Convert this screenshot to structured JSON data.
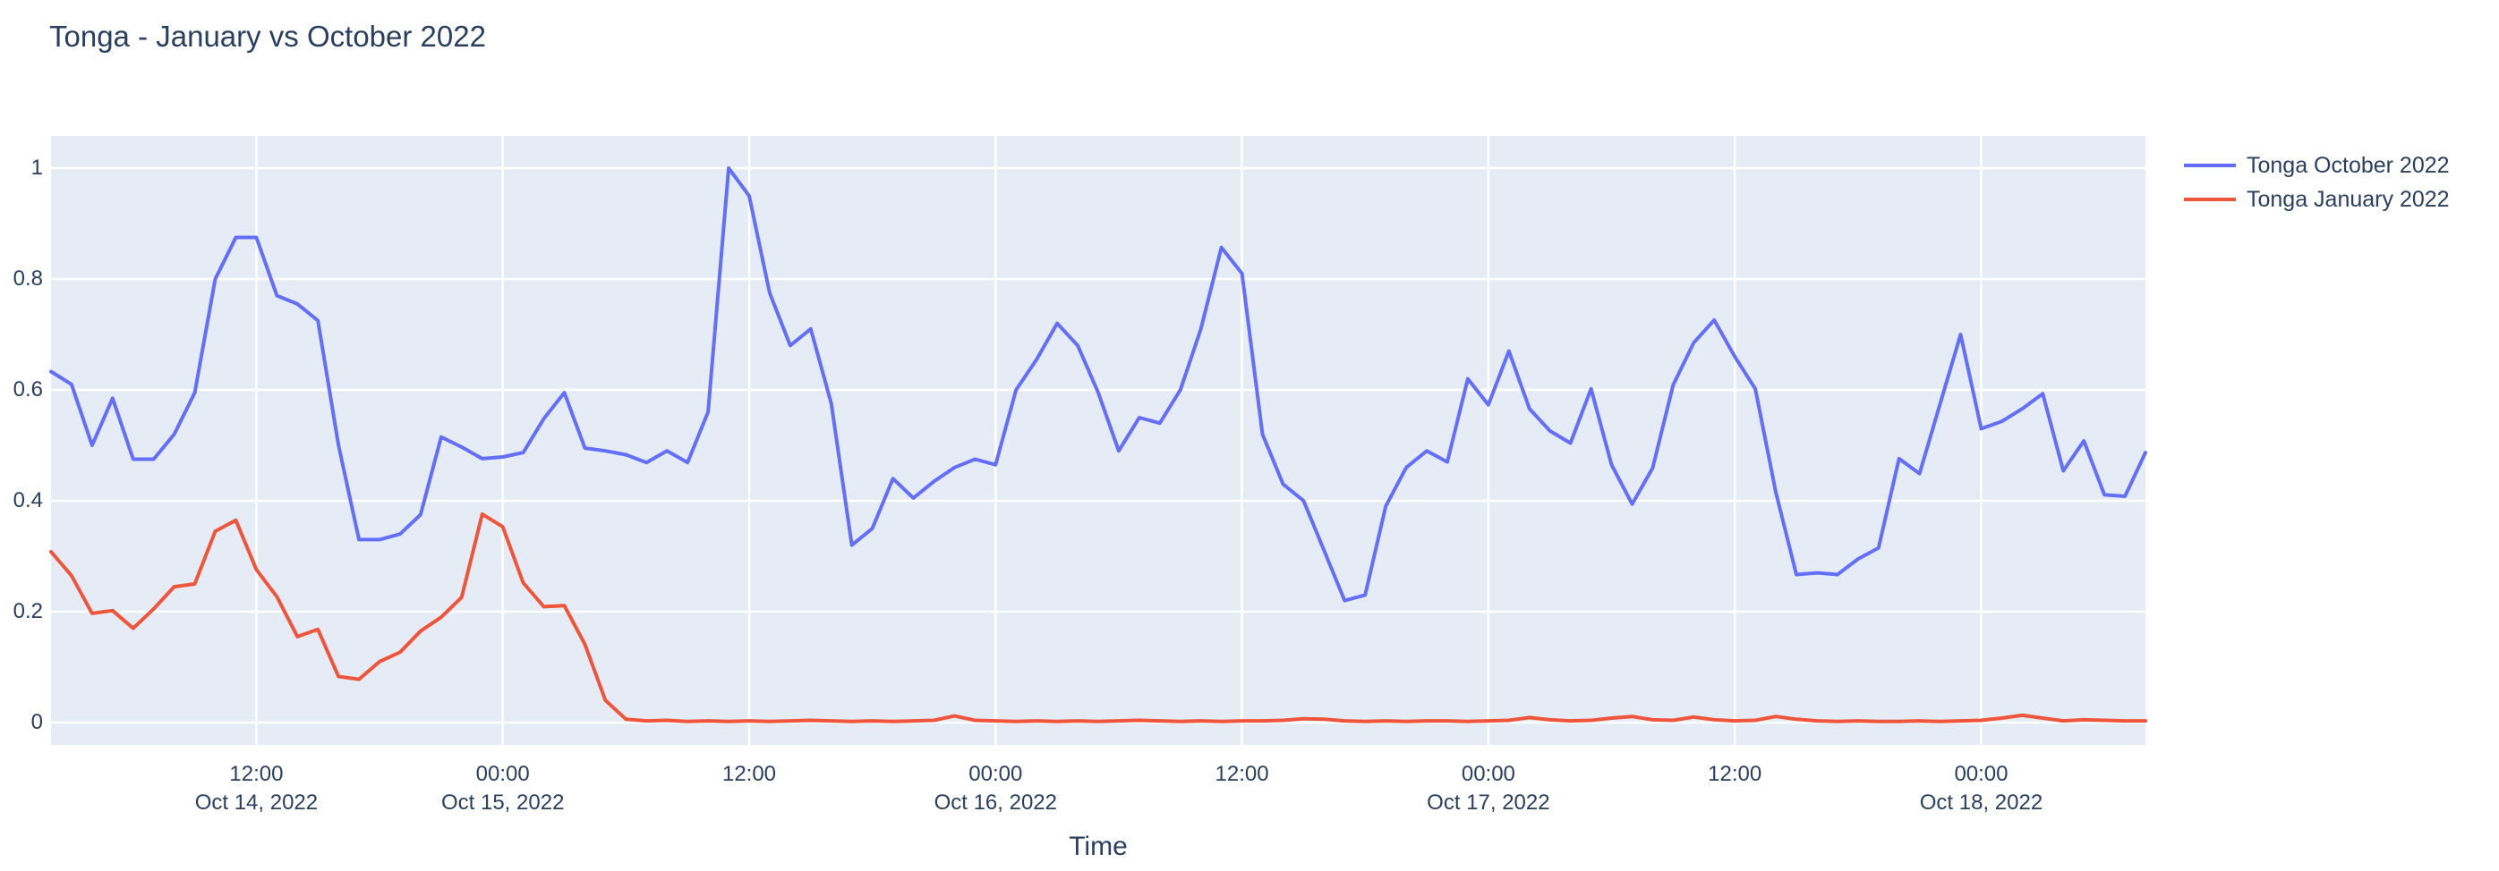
{
  "title": "Tonga - January vs October 2022",
  "chart_data": {
    "type": "line",
    "title": "Tonga - January vs October 2022",
    "xlabel": "Time",
    "ylabel": "",
    "x_start": "2022-10-14 02:00",
    "x_end": "2022-10-18 08:00",
    "interval_hours": 1,
    "ylim": [
      -0.04,
      1.055
    ],
    "grid": true,
    "legend_position": "right-top",
    "plot_background": "#E5ECF6",
    "grid_color": "#FFFFFF",
    "text_color": "#2a3f5f",
    "y_ticks": [
      {
        "value": 0,
        "label": "0"
      },
      {
        "value": 0.2,
        "label": "0.2"
      },
      {
        "value": 0.4,
        "label": "0.4"
      },
      {
        "value": 0.6,
        "label": "0.6"
      },
      {
        "value": 0.8,
        "label": "0.8"
      },
      {
        "value": 1,
        "label": "1"
      }
    ],
    "x_ticks": [
      {
        "hour_offset": 10,
        "time": "12:00",
        "date": "Oct 14, 2022"
      },
      {
        "hour_offset": 22,
        "time": "00:00",
        "date": "Oct 15, 2022"
      },
      {
        "hour_offset": 34,
        "time": "12:00",
        "date": ""
      },
      {
        "hour_offset": 46,
        "time": "00:00",
        "date": "Oct 16, 2022"
      },
      {
        "hour_offset": 58,
        "time": "12:00",
        "date": ""
      },
      {
        "hour_offset": 70,
        "time": "00:00",
        "date": "Oct 17, 2022"
      },
      {
        "hour_offset": 82,
        "time": "12:00",
        "date": ""
      },
      {
        "hour_offset": 94,
        "time": "00:00",
        "date": "Oct 18, 2022"
      }
    ],
    "series": [
      {
        "name": "Tonga October 2022",
        "color": "#636EFA",
        "values": [
          0.633,
          0.61,
          0.5,
          0.585,
          0.475,
          0.475,
          0.52,
          0.595,
          0.8,
          0.875,
          0.875,
          0.77,
          0.755,
          0.725,
          0.5,
          0.33,
          0.33,
          0.34,
          0.375,
          0.515,
          0.497,
          0.476,
          0.479,
          0.487,
          0.548,
          0.595,
          0.495,
          0.49,
          0.483,
          0.469,
          0.49,
          0.469,
          0.56,
          1.0,
          0.95,
          0.775,
          0.68,
          0.71,
          0.575,
          0.32,
          0.35,
          0.44,
          0.405,
          0.435,
          0.46,
          0.475,
          0.465,
          0.6,
          0.655,
          0.72,
          0.68,
          0.595,
          0.49,
          0.55,
          0.54,
          0.6,
          0.71,
          0.857,
          0.81,
          0.52,
          0.43,
          0.4,
          0.31,
          0.22,
          0.23,
          0.39,
          0.46,
          0.49,
          0.47,
          0.62,
          0.573,
          0.67,
          0.566,
          0.526,
          0.504,
          0.602,
          0.465,
          0.394,
          0.459,
          0.609,
          0.685,
          0.726,
          0.66,
          0.602,
          0.415,
          0.267,
          0.27,
          0.267,
          0.295,
          0.315,
          0.476,
          0.449,
          0.575,
          0.7,
          0.53,
          0.543,
          0.566,
          0.593,
          0.454,
          0.508,
          0.411,
          0.408,
          0.487
        ]
      },
      {
        "name": "Tonga January 2022",
        "color": "#EF553B",
        "values": [
          0.308,
          0.265,
          0.197,
          0.202,
          0.17,
          0.205,
          0.245,
          0.25,
          0.345,
          0.365,
          0.276,
          0.227,
          0.155,
          0.168,
          0.083,
          0.078,
          0.11,
          0.127,
          0.165,
          0.19,
          0.226,
          0.376,
          0.353,
          0.252,
          0.209,
          0.211,
          0.141,
          0.04,
          0.006,
          0.003,
          0.004,
          0.002,
          0.003,
          0.002,
          0.003,
          0.002,
          0.003,
          0.004,
          0.003,
          0.002,
          0.003,
          0.002,
          0.003,
          0.004,
          0.012,
          0.004,
          0.003,
          0.002,
          0.003,
          0.002,
          0.003,
          0.002,
          0.003,
          0.004,
          0.003,
          0.002,
          0.003,
          0.002,
          0.003,
          0.003,
          0.004,
          0.007,
          0.006,
          0.003,
          0.002,
          0.003,
          0.002,
          0.003,
          0.003,
          0.002,
          0.003,
          0.004,
          0.009,
          0.005,
          0.003,
          0.004,
          0.008,
          0.011,
          0.005,
          0.004,
          0.01,
          0.005,
          0.003,
          0.004,
          0.011,
          0.006,
          0.003,
          0.002,
          0.003,
          0.002,
          0.002,
          0.003,
          0.002,
          0.003,
          0.004,
          0.008,
          0.013,
          0.008,
          0.003,
          0.005,
          0.004,
          0.003,
          0.003
        ]
      }
    ]
  }
}
